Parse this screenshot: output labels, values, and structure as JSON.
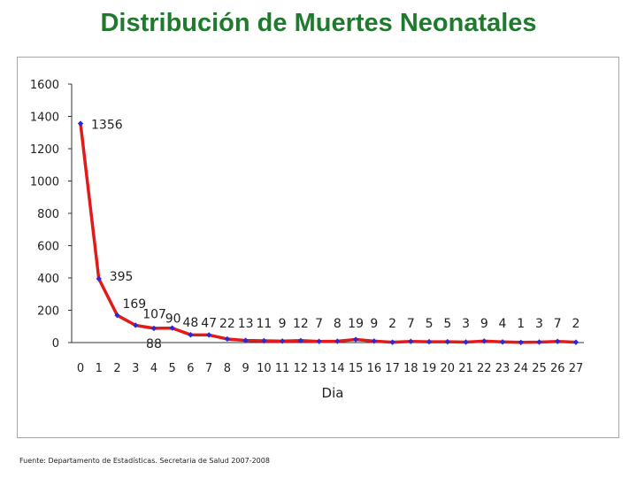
{
  "page": {
    "title": "Distribución de Muertes Neonatales"
  },
  "source": "Fuente: Departamento de Estadísticas. Secretaria de Salud 2007-2008",
  "colors": {
    "title": "#1f7a2e",
    "line": "#e21a1a",
    "marker": "#2a2ad8"
  },
  "chart_data": {
    "type": "line",
    "title": "",
    "xlabel": "Dia",
    "ylabel": "",
    "ylim": [
      0,
      1600
    ],
    "yticks": [
      0,
      200,
      400,
      600,
      800,
      1000,
      1200,
      1400,
      1600
    ],
    "grid": false,
    "legend": "none",
    "x": [
      0,
      1,
      2,
      3,
      4,
      5,
      6,
      7,
      8,
      9,
      10,
      11,
      12,
      13,
      14,
      15,
      16,
      17,
      18,
      19,
      20,
      21,
      22,
      23,
      24,
      25,
      26,
      27
    ],
    "series": [
      {
        "values": [
          1356,
          395,
          169,
          107,
          88,
          90,
          48,
          47,
          22,
          13,
          11,
          9,
          12,
          7,
          8,
          19,
          9,
          2,
          7,
          5,
          5,
          3,
          9,
          4,
          1,
          3,
          7,
          2
        ]
      }
    ]
  }
}
